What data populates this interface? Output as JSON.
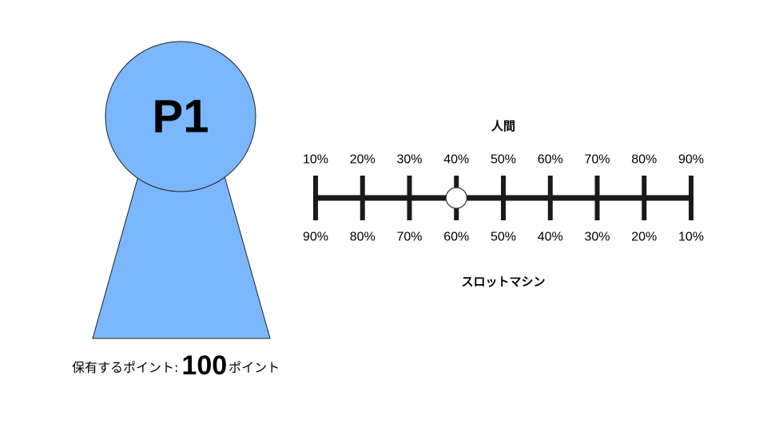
{
  "player": {
    "label": "P1",
    "color": "#7bb7ff"
  },
  "slider": {
    "top_title": "人間",
    "bottom_title": "スロットマシン",
    "top_labels": [
      "10%",
      "20%",
      "30%",
      "40%",
      "50%",
      "60%",
      "70%",
      "80%",
      "90%"
    ],
    "bottom_labels": [
      "90%",
      "80%",
      "70%",
      "60%",
      "50%",
      "40%",
      "30%",
      "20%",
      "10%"
    ],
    "human_percent": 40,
    "slot_machine_percent": 60
  },
  "points": {
    "prefix": "保有するポイント:",
    "value": "100",
    "unit": "ポイント"
  }
}
